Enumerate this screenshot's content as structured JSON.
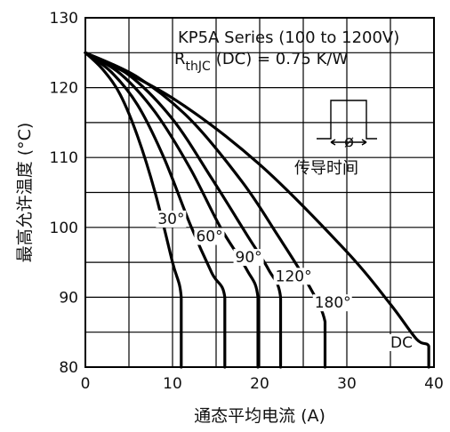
{
  "chart_data": {
    "type": "line",
    "title": "",
    "xlabel": "通态平均电流 (A)",
    "ylabel": "最高允许温度 (°C)",
    "xlim": [
      0,
      40
    ],
    "ylim": [
      80,
      130
    ],
    "x_ticks": [
      0,
      10,
      20,
      30,
      40
    ],
    "y_ticks": [
      80,
      90,
      100,
      110,
      120,
      130
    ],
    "grid": true,
    "annotations": {
      "series_title": "KP5A Series (100 to 1200V)",
      "rth_main": "R",
      "rth_sub": "thJC",
      "rth_rest": "(DC) = 0.75 K/W",
      "inset_phi": "ø",
      "inset_label": "传导时间"
    },
    "series": [
      {
        "name": "30°",
        "label_at": [
          8.3,
          100.5
        ],
        "points": [
          [
            0,
            125
          ],
          [
            2,
            122.6
          ],
          [
            4,
            119
          ],
          [
            6,
            113
          ],
          [
            8,
            105
          ],
          [
            10,
            95
          ],
          [
            11,
            90
          ],
          [
            11,
            80
          ]
        ]
      },
      {
        "name": "60°",
        "label_at": [
          12.7,
          98
        ],
        "points": [
          [
            0,
            125
          ],
          [
            3,
            122.2
          ],
          [
            6,
            117.5
          ],
          [
            9,
            110
          ],
          [
            12,
            100.5
          ],
          [
            14.5,
            93.5
          ],
          [
            16,
            90
          ],
          [
            16,
            80
          ]
        ]
      },
      {
        "name": "90°",
        "label_at": [
          17.2,
          95
        ],
        "points": [
          [
            0,
            125
          ],
          [
            4,
            122
          ],
          [
            8,
            116.5
          ],
          [
            12,
            108.5
          ],
          [
            15.5,
            100
          ],
          [
            18.5,
            94
          ],
          [
            19.8,
            90
          ],
          [
            19.8,
            80
          ]
        ]
      },
      {
        "name": "120°",
        "label_at": [
          21.8,
          92.3
        ],
        "points": [
          [
            0,
            125
          ],
          [
            5,
            121.8
          ],
          [
            10,
            115.5
          ],
          [
            14.5,
            107
          ],
          [
            18.5,
            99
          ],
          [
            21,
            94
          ],
          [
            22.4,
            90
          ],
          [
            22.4,
            80
          ]
        ]
      },
      {
        "name": "180°",
        "label_at": [
          26.3,
          88.5
        ],
        "points": [
          [
            0,
            125
          ],
          [
            6,
            121.5
          ],
          [
            12,
            115.5
          ],
          [
            18,
            106.5
          ],
          [
            22,
            99
          ],
          [
            25.5,
            92
          ],
          [
            27.5,
            86.5
          ],
          [
            27.5,
            80
          ]
        ]
      },
      {
        "name": "DC",
        "label_at": [
          35,
          82.8
        ],
        "points": [
          [
            0,
            125
          ],
          [
            10,
            118.5
          ],
          [
            20,
            109
          ],
          [
            30,
            96.5
          ],
          [
            35,
            89
          ],
          [
            38,
            84
          ],
          [
            39.4,
            83
          ],
          [
            39.4,
            80
          ]
        ]
      }
    ]
  }
}
